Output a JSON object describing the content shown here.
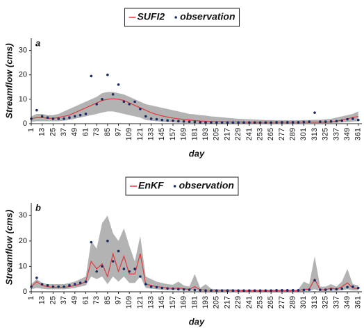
{
  "chart_data": [
    {
      "type": "line",
      "label": "a",
      "ylabel": "Streamflow (cms)",
      "xlabel": "day",
      "xlim": [
        1,
        365
      ],
      "ylim": [
        0,
        35
      ],
      "yticks": [
        0,
        10,
        20,
        30
      ],
      "xticks": [
        1,
        13,
        25,
        37,
        49,
        61,
        73,
        85,
        97,
        109,
        121,
        133,
        145,
        157,
        169,
        181,
        193,
        205,
        217,
        229,
        241,
        253,
        265,
        277,
        289,
        301,
        313,
        325,
        337,
        349,
        361
      ],
      "x": [
        1,
        7,
        13,
        19,
        25,
        31,
        37,
        43,
        49,
        55,
        61,
        67,
        73,
        79,
        85,
        91,
        97,
        103,
        109,
        115,
        121,
        127,
        133,
        139,
        145,
        151,
        157,
        163,
        169,
        175,
        181,
        187,
        193,
        199,
        205,
        211,
        217,
        223,
        229,
        235,
        241,
        247,
        253,
        259,
        265,
        271,
        277,
        283,
        289,
        295,
        301,
        307,
        313,
        319,
        325,
        331,
        337,
        343,
        349,
        355,
        361
      ],
      "band": {
        "color": "#b3b3b3",
        "upper": [
          3,
          4,
          4,
          3.5,
          3.5,
          4,
          5,
          6,
          7,
          8,
          9,
          10,
          11,
          12.5,
          13,
          13,
          12.5,
          12,
          11,
          10,
          9,
          8,
          7.5,
          7,
          6.5,
          6,
          5.5,
          5,
          4.5,
          4,
          3.8,
          3.5,
          3.3,
          3,
          2.8,
          2.6,
          2.4,
          2.2,
          2,
          1.9,
          1.8,
          1.7,
          1.6,
          1.5,
          1.5,
          1.4,
          1.4,
          1.4,
          1.4,
          1.4,
          1.5,
          1.5,
          1.6,
          1.6,
          1.8,
          2,
          2.5,
          3,
          3.5,
          4,
          5
        ],
        "lower": [
          0.8,
          1,
          1,
          1,
          1,
          1,
          1.2,
          1.5,
          2,
          2.5,
          3,
          3.5,
          4,
          4.5,
          5,
          5,
          4.5,
          4,
          3.5,
          3,
          2.5,
          1.5,
          1.2,
          1,
          0.8,
          0.6,
          0.5,
          0.4,
          0.4,
          0.3,
          0.3,
          0.3,
          0.3,
          0.3,
          0.3,
          0.3,
          0.3,
          0.3,
          0.3,
          0.3,
          0.3,
          0.3,
          0.3,
          0.3,
          0.3,
          0.3,
          0.3,
          0.3,
          0.3,
          0.3,
          0.3,
          0.3,
          0.3,
          0.3,
          0.3,
          0.3,
          0.4,
          0.5,
          0.6,
          0.8,
          1
        ]
      },
      "series": [
        {
          "name": "SUFI2",
          "color": "#e0393e",
          "style": "line",
          "values": [
            2,
            2.5,
            2.5,
            2.2,
            2.2,
            2.5,
            3,
            3.5,
            4.5,
            5.5,
            6.5,
            7.5,
            8.5,
            9.5,
            10,
            10.2,
            10,
            9.5,
            8.5,
            7.5,
            6.5,
            5.5,
            4.5,
            3.8,
            3.2,
            2.7,
            2.3,
            2,
            1.7,
            1.5,
            1.3,
            1.1,
            1,
            0.9,
            0.8,
            0.8,
            0.7,
            0.7,
            0.7,
            0.6,
            0.6,
            0.6,
            0.6,
            0.6,
            0.6,
            0.6,
            0.6,
            0.6,
            0.6,
            0.6,
            0.6,
            0.6,
            0.6,
            0.6,
            0.6,
            0.7,
            1,
            1.5,
            2,
            2.5,
            3
          ]
        },
        {
          "name": "observation",
          "color": "#1b2a66",
          "style": "points",
          "values": [
            2,
            5.5,
            3,
            2.5,
            2,
            2,
            2,
            2.5,
            3,
            3.5,
            4,
            19.5,
            8,
            10,
            20,
            12,
            16,
            9,
            8,
            9,
            6,
            3,
            2,
            1.8,
            1.5,
            1.3,
            1.2,
            1,
            0.9,
            0.8,
            0.7,
            0.6,
            0.5,
            0.5,
            0.5,
            0.5,
            0.5,
            0.5,
            0.5,
            0.5,
            0.5,
            0.5,
            0.5,
            0.5,
            0.5,
            0.6,
            0.6,
            0.6,
            0.6,
            0.6,
            0.7,
            0.8,
            4.5,
            0.8,
            0.8,
            0.9,
            1,
            1.2,
            1.8,
            2,
            1.5
          ]
        }
      ]
    },
    {
      "type": "line",
      "label": "b",
      "ylabel": "Streamflow (cms)",
      "xlabel": "day",
      "xlim": [
        1,
        365
      ],
      "ylim": [
        0,
        35
      ],
      "yticks": [
        0,
        10,
        20,
        30
      ],
      "xticks": [
        1,
        13,
        25,
        37,
        49,
        61,
        73,
        85,
        97,
        109,
        121,
        133,
        145,
        157,
        169,
        181,
        193,
        205,
        217,
        229,
        241,
        253,
        265,
        277,
        289,
        301,
        313,
        325,
        337,
        349,
        361
      ],
      "x": [
        1,
        7,
        13,
        19,
        25,
        31,
        37,
        43,
        49,
        55,
        61,
        67,
        73,
        79,
        85,
        91,
        97,
        103,
        109,
        115,
        121,
        127,
        133,
        139,
        145,
        151,
        157,
        163,
        169,
        175,
        181,
        187,
        193,
        199,
        205,
        211,
        217,
        223,
        229,
        235,
        241,
        247,
        253,
        259,
        265,
        271,
        277,
        283,
        289,
        295,
        301,
        307,
        313,
        319,
        325,
        331,
        337,
        343,
        349,
        355,
        361
      ],
      "band": {
        "color": "#b3b3b3",
        "upper": [
          3,
          5,
          3.5,
          3,
          3,
          3,
          3,
          3.5,
          4,
          5,
          6,
          20,
          17,
          27,
          30,
          23,
          20,
          25,
          18,
          12,
          22,
          6,
          5,
          4,
          3.5,
          3,
          2.8,
          4,
          2.5,
          2,
          7,
          1.5,
          3,
          1.2,
          1,
          1,
          1,
          1,
          0.9,
          0.9,
          0.9,
          0.9,
          0.9,
          0.9,
          0.9,
          0.9,
          0.9,
          0.9,
          0.9,
          0.9,
          4,
          3,
          14,
          2,
          2,
          3,
          2,
          4,
          9,
          3,
          2.5
        ],
        "lower": [
          1,
          1.5,
          1.2,
          1,
          1,
          1,
          1,
          1.2,
          1.5,
          2,
          2.5,
          6,
          5,
          6,
          3,
          6,
          4,
          6,
          3.5,
          3.5,
          6,
          1.5,
          1.2,
          1,
          0.8,
          0.7,
          0.6,
          0.6,
          0.5,
          0.4,
          0.5,
          0.3,
          0.3,
          0.3,
          0.3,
          0.3,
          0.3,
          0.3,
          0.3,
          0.3,
          0.3,
          0.3,
          0.3,
          0.3,
          0.3,
          0.3,
          0.3,
          0.3,
          0.3,
          0.3,
          0.3,
          0.4,
          1,
          0.3,
          0.3,
          0.5,
          0.4,
          0.6,
          1,
          0.5,
          0.5
        ]
      },
      "series": [
        {
          "name": "EnKF",
          "color": "#e0393e",
          "style": "line",
          "values": [
            2,
            4,
            2.5,
            2,
            1.8,
            1.8,
            1.8,
            2,
            2.5,
            3,
            4,
            12,
            9,
            11,
            6,
            15,
            8,
            14,
            7,
            7,
            15,
            3,
            2.5,
            2,
            1.8,
            1.5,
            1.3,
            1.5,
            1.2,
            1,
            2,
            0.8,
            0.7,
            0.6,
            0.5,
            0.5,
            0.5,
            0.5,
            0.4,
            0.4,
            0.4,
            0.4,
            0.4,
            0.4,
            0.4,
            0.4,
            0.4,
            0.4,
            0.4,
            0.4,
            1,
            1,
            5,
            0.8,
            0.8,
            1.5,
            1,
            2,
            3.5,
            1.5,
            1.2
          ]
        },
        {
          "name": "observation",
          "color": "#1b2a66",
          "style": "points",
          "values": [
            2,
            5.5,
            3,
            2.5,
            2,
            2,
            2,
            2.5,
            3,
            3.5,
            4,
            19.5,
            8,
            10,
            20,
            12,
            16,
            9,
            8,
            9,
            6,
            3,
            2,
            1.8,
            1.5,
            1.3,
            1.2,
            1,
            0.9,
            0.8,
            0.7,
            0.6,
            0.5,
            0.5,
            0.5,
            0.5,
            0.5,
            0.5,
            0.5,
            0.5,
            0.5,
            0.5,
            0.5,
            0.5,
            0.5,
            0.6,
            0.6,
            0.6,
            0.6,
            0.6,
            0.7,
            0.8,
            4.5,
            0.8,
            0.8,
            0.9,
            1,
            1.2,
            1.8,
            2,
            1.5
          ]
        }
      ]
    }
  ]
}
